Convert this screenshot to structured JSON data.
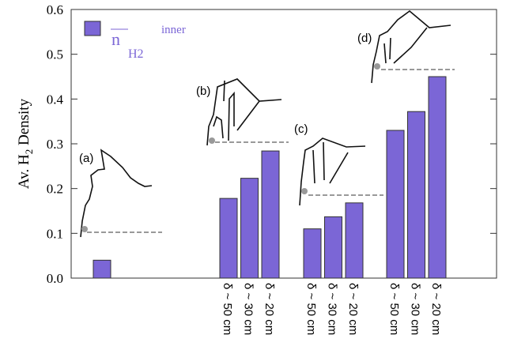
{
  "chart_data": {
    "type": "bar",
    "ylabel": {
      "text": "Av. H",
      "subscript": "2",
      "suffix": " Density"
    },
    "legend": {
      "symbol": "n",
      "subscript": "H2",
      "superscript": "inner"
    },
    "color": "#7b66d6",
    "ylim": [
      0,
      0.6
    ],
    "yticks": [
      {
        "value": 0,
        "label": "0.0"
      },
      0.1,
      0.2,
      0.3,
      0.4,
      0.5,
      0.6
    ],
    "groups": [
      {
        "label": "(a)",
        "categories": [
          null
        ],
        "values": [
          0.04
        ]
      },
      {
        "label": "(b)",
        "categories": [
          "δ ~ 50 cm",
          "δ ~ 30 cm",
          "δ ~ 20 cm"
        ],
        "values": [
          0.178,
          0.223,
          0.284
        ]
      },
      {
        "label": "(c)",
        "categories": [
          "δ ~ 50 cm",
          "δ ~ 30 cm",
          "δ ~ 20 cm"
        ],
        "values": [
          0.11,
          0.137,
          0.168
        ]
      },
      {
        "label": "(d)",
        "categories": [
          "δ ~ 50 cm",
          "δ ~ 30 cm",
          "δ ~ 20 cm"
        ],
        "values": [
          0.33,
          0.372,
          0.45
        ]
      }
    ]
  }
}
